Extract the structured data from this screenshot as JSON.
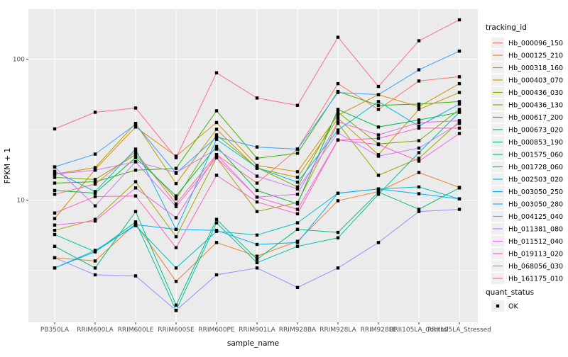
{
  "chart_data": {
    "type": "line",
    "title": "",
    "xlabel": "sample_name",
    "ylabel": "FPKM + 1",
    "y_scale": "log10",
    "ylim": [
      1.35,
      220
    ],
    "y_ticks": [
      100,
      10
    ],
    "y_minor_ticks": [
      31.62,
      3.162
    ],
    "grid": true,
    "panel_bg": "#EBEBEB",
    "grid_color": "#FFFFFF",
    "axis_text_color": "#4D4D4D",
    "tick_mark_color": "#333333",
    "point_color": "#000000",
    "legend_position": "right",
    "legend_title": "tracking_id",
    "legend2_title": "quant_status",
    "legend2_items": [
      {
        "label": "OK",
        "marker": "black-square"
      }
    ],
    "x_categories": [
      "PB350LA",
      "RRIM600LA",
      "RRIM600LE",
      "RRIM600SE",
      "RRIM600PE",
      "RRIM901LA",
      "RRIM928BA",
      "RRIM928LA",
      "RRIM928LE",
      "RRII105LA_Control",
      "RRII105LA_Stressed"
    ],
    "series": [
      {
        "name": "Hb_000096_150",
        "color": "#F8766D",
        "values": [
          11.0,
          13.0,
          22.0,
          9.4,
          21.0,
          13.2,
          23.0,
          67,
          44,
          70,
          75
        ]
      },
      {
        "name": "Hb_000125_210",
        "color": "#EA8331",
        "values": [
          3.9,
          3.7,
          6.8,
          2.65,
          5.0,
          4.0,
          5.1,
          9.9,
          11.5,
          15.7,
          12.3
        ]
      },
      {
        "name": "Hb_000318_160",
        "color": "#D89000",
        "values": [
          7.4,
          16.5,
          33.0,
          20.5,
          35.5,
          17.6,
          15.9,
          40,
          56,
          46,
          67
        ]
      },
      {
        "name": "Hb_000403_070",
        "color": "#C09B00",
        "values": [
          15.3,
          17.0,
          35.0,
          13.1,
          31.8,
          16.8,
          14.5,
          38,
          21,
          44,
          58
        ]
      },
      {
        "name": "Hb_000436_030",
        "color": "#A3A500",
        "values": [
          6.1,
          7.3,
          13.5,
          5.5,
          20.0,
          8.3,
          9.6,
          35,
          15,
          19.8,
          36
        ]
      },
      {
        "name": "Hb_000436_130",
        "color": "#7CAE00",
        "values": [
          14.5,
          14.0,
          21.0,
          10.2,
          29.0,
          17.0,
          12.4,
          42,
          25,
          26.4,
          44
        ]
      },
      {
        "name": "Hb_000617_200",
        "color": "#39B600",
        "values": [
          13.2,
          13.5,
          16.3,
          16.8,
          43.0,
          19.8,
          21.5,
          59,
          47,
          48,
          50
        ]
      },
      {
        "name": "Hb_000673_020",
        "color": "#00BB4E",
        "values": [
          11.7,
          11.2,
          20.0,
          10.7,
          24.0,
          11.7,
          9.4,
          44,
          33,
          37,
          42
        ]
      },
      {
        "name": "Hb_000853_190",
        "color": "#00BF7D",
        "values": [
          4.7,
          3.3,
          8.3,
          1.8,
          7.3,
          3.8,
          6.2,
          5.9,
          11.4,
          8.6,
          12.2
        ]
      },
      {
        "name": "Hb_001575_060",
        "color": "#00C1A3",
        "values": [
          5.7,
          4.3,
          7.0,
          1.65,
          6.9,
          3.6,
          4.7,
          5.4,
          11.0,
          21.7,
          42
        ]
      },
      {
        "name": "Hb_001728_060",
        "color": "#00BFC4",
        "values": [
          3.3,
          4.4,
          6.6,
          3.3,
          6.0,
          5.65,
          6.9,
          11.2,
          12.0,
          12.4,
          10.2
        ]
      },
      {
        "name": "Hb_002503_020",
        "color": "#00BAE0",
        "values": [
          16.0,
          11.5,
          23.0,
          6.2,
          27.0,
          17.0,
          13.4,
          31.4,
          50,
          33.5,
          48
        ]
      },
      {
        "name": "Hb_003050_250",
        "color": "#00B0F6",
        "values": [
          3.3,
          4.3,
          6.7,
          6.2,
          6.1,
          4.85,
          5.0,
          11.2,
          12.0,
          11.1,
          10.2
        ]
      },
      {
        "name": "Hb_003050_280",
        "color": "#35A2FF",
        "values": [
          17.2,
          21.2,
          34.5,
          15.5,
          28.0,
          23.8,
          23.0,
          58,
          56,
          84,
          114
        ]
      },
      {
        "name": "Hb_004125_040",
        "color": "#9590FF",
        "values": [
          3.9,
          2.95,
          2.9,
          1.65,
          2.95,
          3.3,
          2.4,
          3.3,
          5.0,
          8.3,
          8.6
        ]
      },
      {
        "name": "Hb_011381_080",
        "color": "#C77CFF",
        "values": [
          17.2,
          9.1,
          18.7,
          15.7,
          23.0,
          14.8,
          12.0,
          30,
          20.5,
          23.4,
          35
        ]
      },
      {
        "name": "Hb_011512_040",
        "color": "#E76BF3",
        "values": [
          15.3,
          16.3,
          18.7,
          9.0,
          20.0,
          10.5,
          11.0,
          36,
          29,
          35.5,
          36.6
        ]
      },
      {
        "name": "Hb_019113_020",
        "color": "#FA62DB",
        "values": [
          6.65,
          7.1,
          12.2,
          7.5,
          21.0,
          10.5,
          8.6,
          26.7,
          24.8,
          18.9,
          29.7
        ]
      },
      {
        "name": "Hb_068056_030",
        "color": "#FF62BC",
        "values": [
          8.1,
          10.6,
          10.7,
          4.6,
          15.0,
          9.7,
          8.0,
          26.7,
          27.4,
          32.4,
          32.4
        ]
      },
      {
        "name": "Hb_161175_010",
        "color": "#FF6A98",
        "values": [
          32,
          42,
          45,
          20,
          80,
          53,
          47,
          143,
          64,
          135,
          190
        ]
      }
    ]
  }
}
